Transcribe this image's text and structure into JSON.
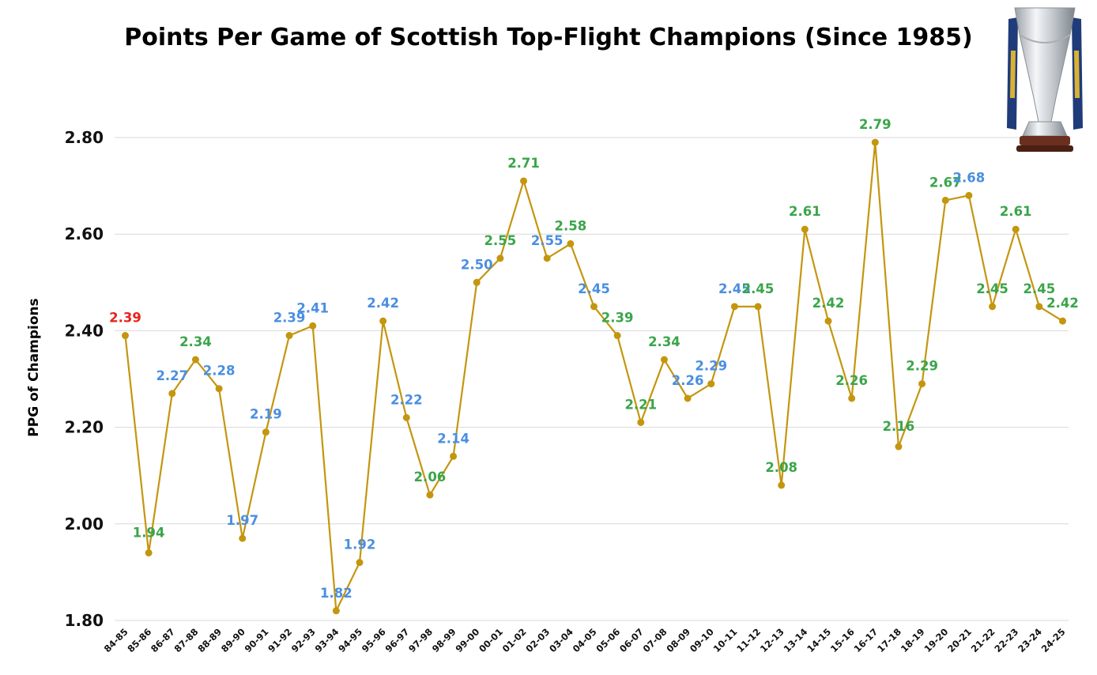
{
  "title": "Points Per Game of Scottish Top-Flight Champions (Since 1985)",
  "trophy": {
    "icon": "league-trophy-icon"
  },
  "chart_data": {
    "type": "line",
    "title": "Points Per Game of Scottish Top-Flight Champions (Since 1985)",
    "xlabel": "",
    "ylabel": "PPG of Champions",
    "ylim": [
      1.8,
      2.8
    ],
    "yticks": [
      "1.80",
      "2.00",
      "2.20",
      "2.40",
      "2.60",
      "2.80"
    ],
    "grid": "horizontal",
    "categories": [
      "84-85",
      "85-86",
      "86-87",
      "87-88",
      "88-89",
      "89-90",
      "90-91",
      "91-92",
      "92-93",
      "93-94",
      "94-95",
      "95-96",
      "96-97",
      "97-98",
      "98-99",
      "99-00",
      "00-01",
      "01-02",
      "02-03",
      "03-04",
      "04-05",
      "05-06",
      "06-07",
      "07-08",
      "08-09",
      "09-10",
      "10-11",
      "11-12",
      "12-13",
      "13-14",
      "14-15",
      "15-16",
      "16-17",
      "17-18",
      "18-19",
      "19-20",
      "20-21",
      "21-22",
      "22-23",
      "23-24",
      "24-25"
    ],
    "values": [
      2.39,
      1.94,
      2.27,
      2.34,
      2.28,
      1.97,
      2.19,
      2.39,
      2.41,
      1.82,
      1.92,
      2.42,
      2.22,
      2.06,
      2.14,
      2.5,
      2.55,
      2.71,
      2.55,
      2.58,
      2.45,
      2.39,
      2.21,
      2.34,
      2.26,
      2.29,
      2.45,
      2.45,
      2.08,
      2.61,
      2.42,
      2.26,
      2.79,
      2.16,
      2.29,
      2.67,
      2.68,
      2.45,
      2.61,
      2.45,
      2.42
    ],
    "labels": [
      "2.39",
      "1.94",
      "2.27",
      "2.34",
      "2.28",
      "1.97",
      "2.19",
      "2.39",
      "2.41",
      "1.82",
      "1.92",
      "2.42",
      "2.22",
      "2.06",
      "2.14",
      "2.50",
      "2.55",
      "2.71",
      "2.55",
      "2.58",
      "2.45",
      "2.39",
      "2.21",
      "2.34",
      "2.26",
      "2.29",
      "2.45",
      "2.45",
      "2.08",
      "2.61",
      "2.42",
      "2.26",
      "2.79",
      "2.16",
      "2.29",
      "2.67",
      "2.68",
      "2.45",
      "2.61",
      "2.45",
      "2.42"
    ],
    "label_colors": [
      "red",
      "green",
      "blue",
      "green",
      "blue",
      "blue",
      "blue",
      "blue",
      "blue",
      "blue",
      "blue",
      "blue",
      "blue",
      "green",
      "blue",
      "blue",
      "green",
      "green",
      "blue",
      "green",
      "blue",
      "green",
      "green",
      "green",
      "blue",
      "blue",
      "blue",
      "green",
      "green",
      "green",
      "green",
      "green",
      "green",
      "green",
      "green",
      "green",
      "blue",
      "green",
      "green",
      "green",
      "green"
    ],
    "label_positions": [
      "above",
      "below",
      "above",
      "above",
      "above",
      "above",
      "above",
      "above",
      "above",
      "above",
      "above",
      "above",
      "above",
      "above",
      "above",
      "above",
      "above",
      "above",
      "above",
      "above",
      "above",
      "above",
      "above",
      "above",
      "above",
      "above",
      "above",
      "above",
      "above",
      "above",
      "above",
      "above",
      "above",
      "below",
      "above",
      "above",
      "above",
      "above",
      "above",
      "above",
      "above"
    ],
    "colors": {
      "line": "#c4960f",
      "red": "#e8241c",
      "green": "#3aa54a",
      "blue": "#4a8fe0",
      "grid": "#d8d8d8"
    }
  }
}
